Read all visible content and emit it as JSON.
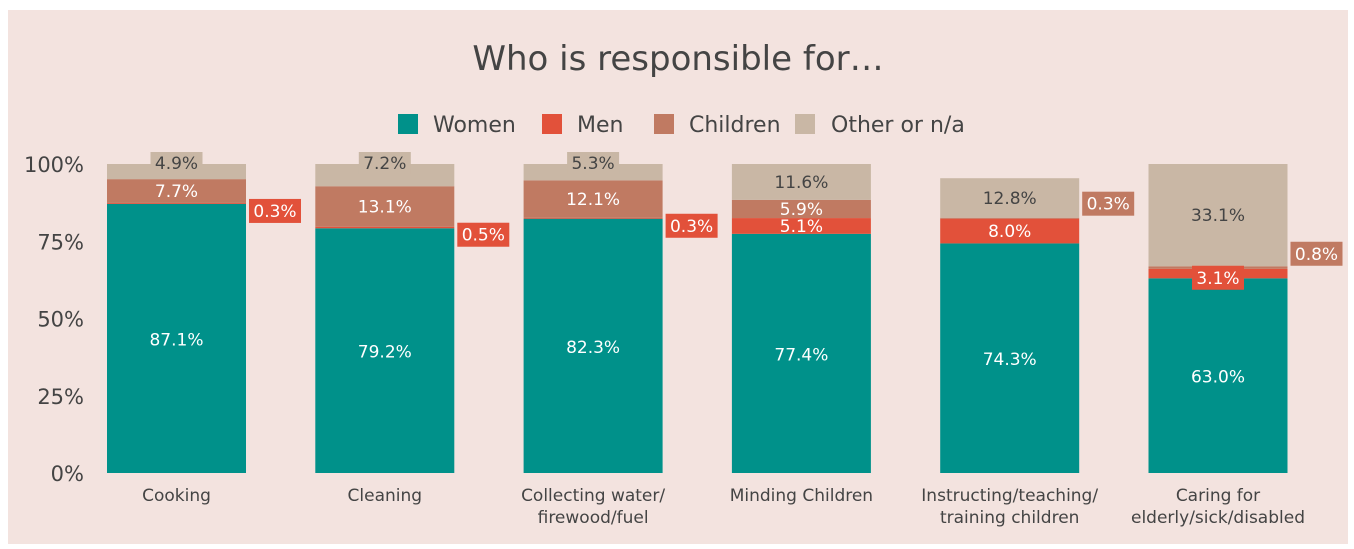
{
  "chart_data": {
    "type": "bar",
    "stacked": true,
    "title": "Who is responsible for…",
    "xlabel": "",
    "ylabel": "",
    "ylim": [
      0,
      100
    ],
    "y_ticks": [
      "0%",
      "25%",
      "50%",
      "75%",
      "100%"
    ],
    "categories": [
      [
        "Cooking"
      ],
      [
        "Cleaning"
      ],
      [
        "Collecting water/",
        "firewood/fuel"
      ],
      [
        "Minding Children"
      ],
      [
        "Instructing/teaching/",
        "training children"
      ],
      [
        "Caring for",
        "elderly/sick/disabled"
      ]
    ],
    "series": [
      {
        "name": "Women",
        "color": "#00918a",
        "values": [
          87.1,
          79.2,
          82.3,
          77.4,
          74.3,
          63.0
        ],
        "labels": [
          "87.1%",
          "79.2%",
          "82.3%",
          "77.4%",
          "74.3%",
          "63.0%"
        ]
      },
      {
        "name": "Men",
        "color": "#e2513a",
        "values": [
          0.3,
          0.5,
          0.3,
          5.1,
          8.0,
          3.1
        ],
        "labels": [
          "0.3%",
          "0.5%",
          "0.3%",
          "5.1%",
          "8.0%",
          "3.1%"
        ]
      },
      {
        "name": "Children",
        "color": "#c07a62",
        "values": [
          7.7,
          13.1,
          12.1,
          5.9,
          0.3,
          0.8
        ],
        "labels": [
          "7.7%",
          "13.1%",
          "12.1%",
          "5.9%",
          "0.3%",
          "0.8%"
        ]
      },
      {
        "name": "Other or n/a",
        "color": "#c9b7a5",
        "values": [
          4.9,
          7.2,
          5.3,
          11.6,
          12.8,
          33.1
        ],
        "labels": [
          "4.9%",
          "7.2%",
          "5.3%",
          "11.6%",
          "12.8%",
          "33.1%"
        ]
      }
    ],
    "grid": false,
    "legend_position": "top-center"
  }
}
